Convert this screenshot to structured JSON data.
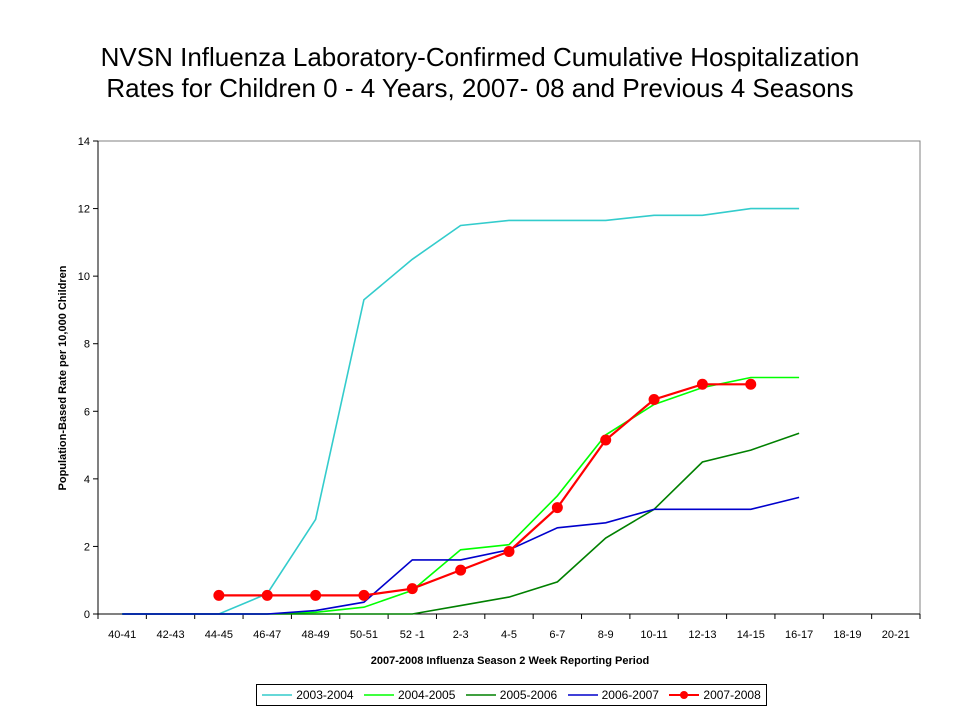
{
  "title_line1": "NVSN Influenza Laboratory-Confirmed Cumulative Hospitalization",
  "title_line2": "Rates for Children 0 - 4 Years, 2007- 08 and Previous 4 Seasons",
  "chart_data": {
    "type": "line",
    "title": "NVSN Influenza Laboratory-Confirmed Cumulative Hospitalization Rates for Children 0 - 4 Years, 2007- 08 and Previous 4 Seasons",
    "xlabel": "2007-2008 Influenza Season 2 Week Reporting Period",
    "ylabel": "Population-Based Rate per 10,000 Children",
    "categories": [
      "40-41",
      "42-43",
      "44-45",
      "46-47",
      "48-49",
      "50-51",
      "52 -1",
      "2-3",
      "4-5",
      "6-7",
      "8-9",
      "10-11",
      "12-13",
      "14-15",
      "16-17",
      "18-19",
      "20-21"
    ],
    "ylim": [
      0,
      14
    ],
    "yticks": [
      0,
      2,
      4,
      6,
      8,
      10,
      12,
      14
    ],
    "grid": false,
    "legend_position": "bottom",
    "series": [
      {
        "name": "2003-2004",
        "color": "#33CCCC",
        "marker": "none",
        "values": [
          0,
          0,
          0,
          0.6,
          2.8,
          9.3,
          10.5,
          11.5,
          11.65,
          11.65,
          11.65,
          11.8,
          11.8,
          12.0,
          12.0,
          null,
          null
        ]
      },
      {
        "name": "2004-2005",
        "color": "#00FF00",
        "marker": "none",
        "values": [
          0,
          0,
          0,
          0,
          0.05,
          0.2,
          0.7,
          1.9,
          2.05,
          3.5,
          5.3,
          6.2,
          6.7,
          7.0,
          7.0,
          null,
          null
        ]
      },
      {
        "name": "2005-2006",
        "color": "#008000",
        "marker": "none",
        "values": [
          0,
          0,
          0,
          0,
          0,
          0,
          0,
          0.25,
          0.5,
          0.95,
          2.25,
          3.1,
          4.5,
          4.85,
          5.35,
          null,
          null
        ]
      },
      {
        "name": "2006-2007",
        "color": "#0000CC",
        "marker": "none",
        "values": [
          0,
          0,
          0,
          0,
          0.1,
          0.35,
          1.6,
          1.6,
          1.9,
          2.55,
          2.7,
          3.1,
          3.1,
          3.1,
          3.45,
          null,
          null
        ]
      },
      {
        "name": "2007-2008",
        "color": "#FF0000",
        "marker": "circle",
        "values": [
          null,
          null,
          0.55,
          0.55,
          0.55,
          0.55,
          0.75,
          1.3,
          1.85,
          3.15,
          5.15,
          6.35,
          6.8,
          6.8,
          null,
          null,
          null
        ]
      }
    ]
  }
}
